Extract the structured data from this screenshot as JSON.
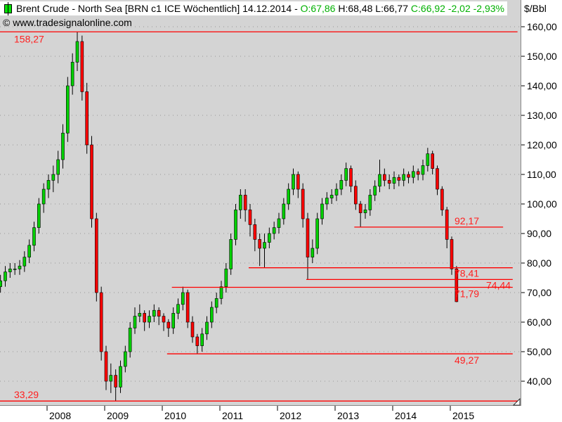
{
  "header": {
    "title": "Brent Crude - North Sea [BRN c1 ICE  Wöchentlich] 14.12.2014 -",
    "open": "O:67,86",
    "high": "H:68,48",
    "low": "L:66,77",
    "close": "C:66,92 -2,02 -2,93%"
  },
  "copyright": "© www.tradesignalonline.com",
  "colors": {
    "background": "#d4d4d4",
    "up": "#00d000",
    "down": "#ff0000",
    "level_line": "#ff0000",
    "label": "#ff2020",
    "header_green": "#00b000"
  },
  "chart_data": {
    "type": "candlestick",
    "unit": "$/Bbl",
    "ylim": [
      30,
      163
    ],
    "xlim": [
      "2007-03",
      "2016-03"
    ],
    "grid": "dotted horizontal",
    "yticks": [
      "40,00",
      "50,00",
      "60,00",
      "70,00",
      "80,00",
      "90,00",
      "100,00",
      "110,00",
      "120,00",
      "130,00",
      "140,00",
      "150,00",
      "160,00"
    ],
    "ytick_values": [
      40,
      50,
      60,
      70,
      80,
      90,
      100,
      110,
      120,
      130,
      140,
      150,
      160
    ],
    "xticks": [
      "2008",
      "2009",
      "2010",
      "2011",
      "2012",
      "2013",
      "2014",
      "2015"
    ],
    "start_month": "2007-03",
    "ohlc": [
      [
        72,
        76,
        70,
        74
      ],
      [
        74,
        79,
        72,
        77
      ],
      [
        77,
        80,
        75,
        78
      ],
      [
        78,
        80,
        76,
        78
      ],
      [
        78,
        81,
        76,
        79
      ],
      [
        79,
        84,
        77,
        82
      ],
      [
        82,
        88,
        80,
        86
      ],
      [
        86,
        94,
        84,
        92
      ],
      [
        92,
        102,
        90,
        100
      ],
      [
        100,
        107,
        97,
        105
      ],
      [
        105,
        110,
        102,
        108
      ],
      [
        108,
        113,
        104,
        110
      ],
      [
        110,
        118,
        107,
        115
      ],
      [
        115,
        127,
        112,
        124
      ],
      [
        124,
        143,
        121,
        140
      ],
      [
        140,
        151,
        137,
        148
      ],
      [
        148,
        158.27,
        145,
        155
      ],
      [
        155,
        157,
        135,
        138
      ],
      [
        138,
        141,
        117,
        120
      ],
      [
        120,
        123,
        92,
        95
      ],
      [
        95,
        97,
        67,
        70
      ],
      [
        70,
        72,
        47,
        50
      ],
      [
        50,
        52,
        37,
        40
      ],
      [
        40,
        46,
        36,
        42
      ],
      [
        42,
        44,
        33.29,
        38
      ],
      [
        38,
        47,
        36,
        45
      ],
      [
        45,
        52,
        43,
        50
      ],
      [
        50,
        60,
        48,
        58
      ],
      [
        58,
        65,
        56,
        62
      ],
      [
        62,
        66,
        60,
        63
      ],
      [
        63,
        64,
        57,
        60
      ],
      [
        60,
        64,
        58,
        62
      ],
      [
        62,
        66,
        60,
        64
      ],
      [
        64,
        65,
        59,
        62
      ],
      [
        62,
        63,
        57,
        60
      ],
      [
        60,
        61,
        55,
        58
      ],
      [
        58,
        65,
        56,
        63
      ],
      [
        63,
        68,
        61,
        66
      ],
      [
        66,
        72,
        64,
        70
      ],
      [
        70,
        71,
        58,
        60
      ],
      [
        60,
        62,
        53,
        55
      ],
      [
        55,
        56,
        49.27,
        52
      ],
      [
        52,
        58,
        50,
        56
      ],
      [
        56,
        62,
        54,
        60
      ],
      [
        60,
        67,
        58,
        65
      ],
      [
        65,
        70,
        63,
        68
      ],
      [
        68,
        74,
        66,
        72
      ],
      [
        72,
        80,
        70,
        78
      ],
      [
        78,
        90,
        76,
        88
      ],
      [
        88,
        100,
        86,
        98
      ],
      [
        98,
        105,
        95,
        103
      ],
      [
        103,
        105,
        94,
        98
      ],
      [
        98,
        100,
        89,
        93
      ],
      [
        93,
        95,
        84,
        88
      ],
      [
        88,
        90,
        79,
        85
      ],
      [
        85,
        90,
        78.41,
        87
      ],
      [
        87,
        92,
        85,
        90
      ],
      [
        90,
        94,
        88,
        92
      ],
      [
        92,
        97,
        90,
        95
      ],
      [
        95,
        102,
        93,
        100
      ],
      [
        100,
        107,
        98,
        105
      ],
      [
        105,
        112,
        103,
        110
      ],
      [
        110,
        111,
        102,
        105
      ],
      [
        105,
        107,
        92,
        95
      ],
      [
        95,
        97,
        74.44,
        82
      ],
      [
        82,
        88,
        80,
        85
      ],
      [
        85,
        97,
        83,
        95
      ],
      [
        95,
        102,
        93,
        100
      ],
      [
        100,
        104,
        98,
        102
      ],
      [
        102,
        105,
        100,
        103
      ],
      [
        103,
        107,
        101,
        105
      ],
      [
        105,
        110,
        103,
        108
      ],
      [
        108,
        114,
        106,
        112
      ],
      [
        112,
        113,
        104,
        106
      ],
      [
        106,
        108,
        98,
        100
      ],
      [
        100,
        101,
        92.17,
        97
      ],
      [
        97,
        100,
        95,
        98
      ],
      [
        98,
        105,
        96,
        103
      ],
      [
        103,
        108,
        101,
        106
      ],
      [
        106,
        115,
        104,
        110
      ],
      [
        110,
        112,
        106,
        108
      ],
      [
        108,
        110,
        105,
        107
      ],
      [
        107,
        111,
        105,
        109
      ],
      [
        109,
        110,
        106,
        108
      ],
      [
        108,
        112,
        106,
        110
      ],
      [
        110,
        111,
        107,
        109
      ],
      [
        109,
        113,
        107,
        111
      ],
      [
        111,
        112,
        108,
        110
      ],
      [
        110,
        115,
        108,
        113
      ],
      [
        113,
        119,
        111,
        117
      ],
      [
        117,
        118,
        110,
        112
      ],
      [
        112,
        113,
        103,
        105
      ],
      [
        105,
        106,
        96,
        98
      ],
      [
        98,
        99,
        85,
        88
      ],
      [
        88,
        89,
        76,
        78
      ],
      [
        78,
        79,
        66.77,
        66.92
      ]
    ],
    "levels": [
      {
        "value": 158.27,
        "label": "158,27",
        "from": "2007-03",
        "to": "2016-03"
      },
      {
        "value": 33.29,
        "label": "33,29",
        "from": "2007-03",
        "to": "2016-03"
      },
      {
        "value": 92.17,
        "label": "92,17",
        "from": "2013-05",
        "to": "2015-12"
      },
      {
        "value": 78.41,
        "label": "78,41",
        "from": "2011-07",
        "to": "2016-02"
      },
      {
        "value": 74.44,
        "label": "74,44",
        "from": "2012-07",
        "to": "2016-02"
      },
      {
        "value": 71.79,
        "label": "71,79",
        "from": "2010-03",
        "to": "2016-02"
      },
      {
        "value": 49.27,
        "label": "49,27",
        "from": "2010-02",
        "to": "2016-02"
      }
    ]
  }
}
